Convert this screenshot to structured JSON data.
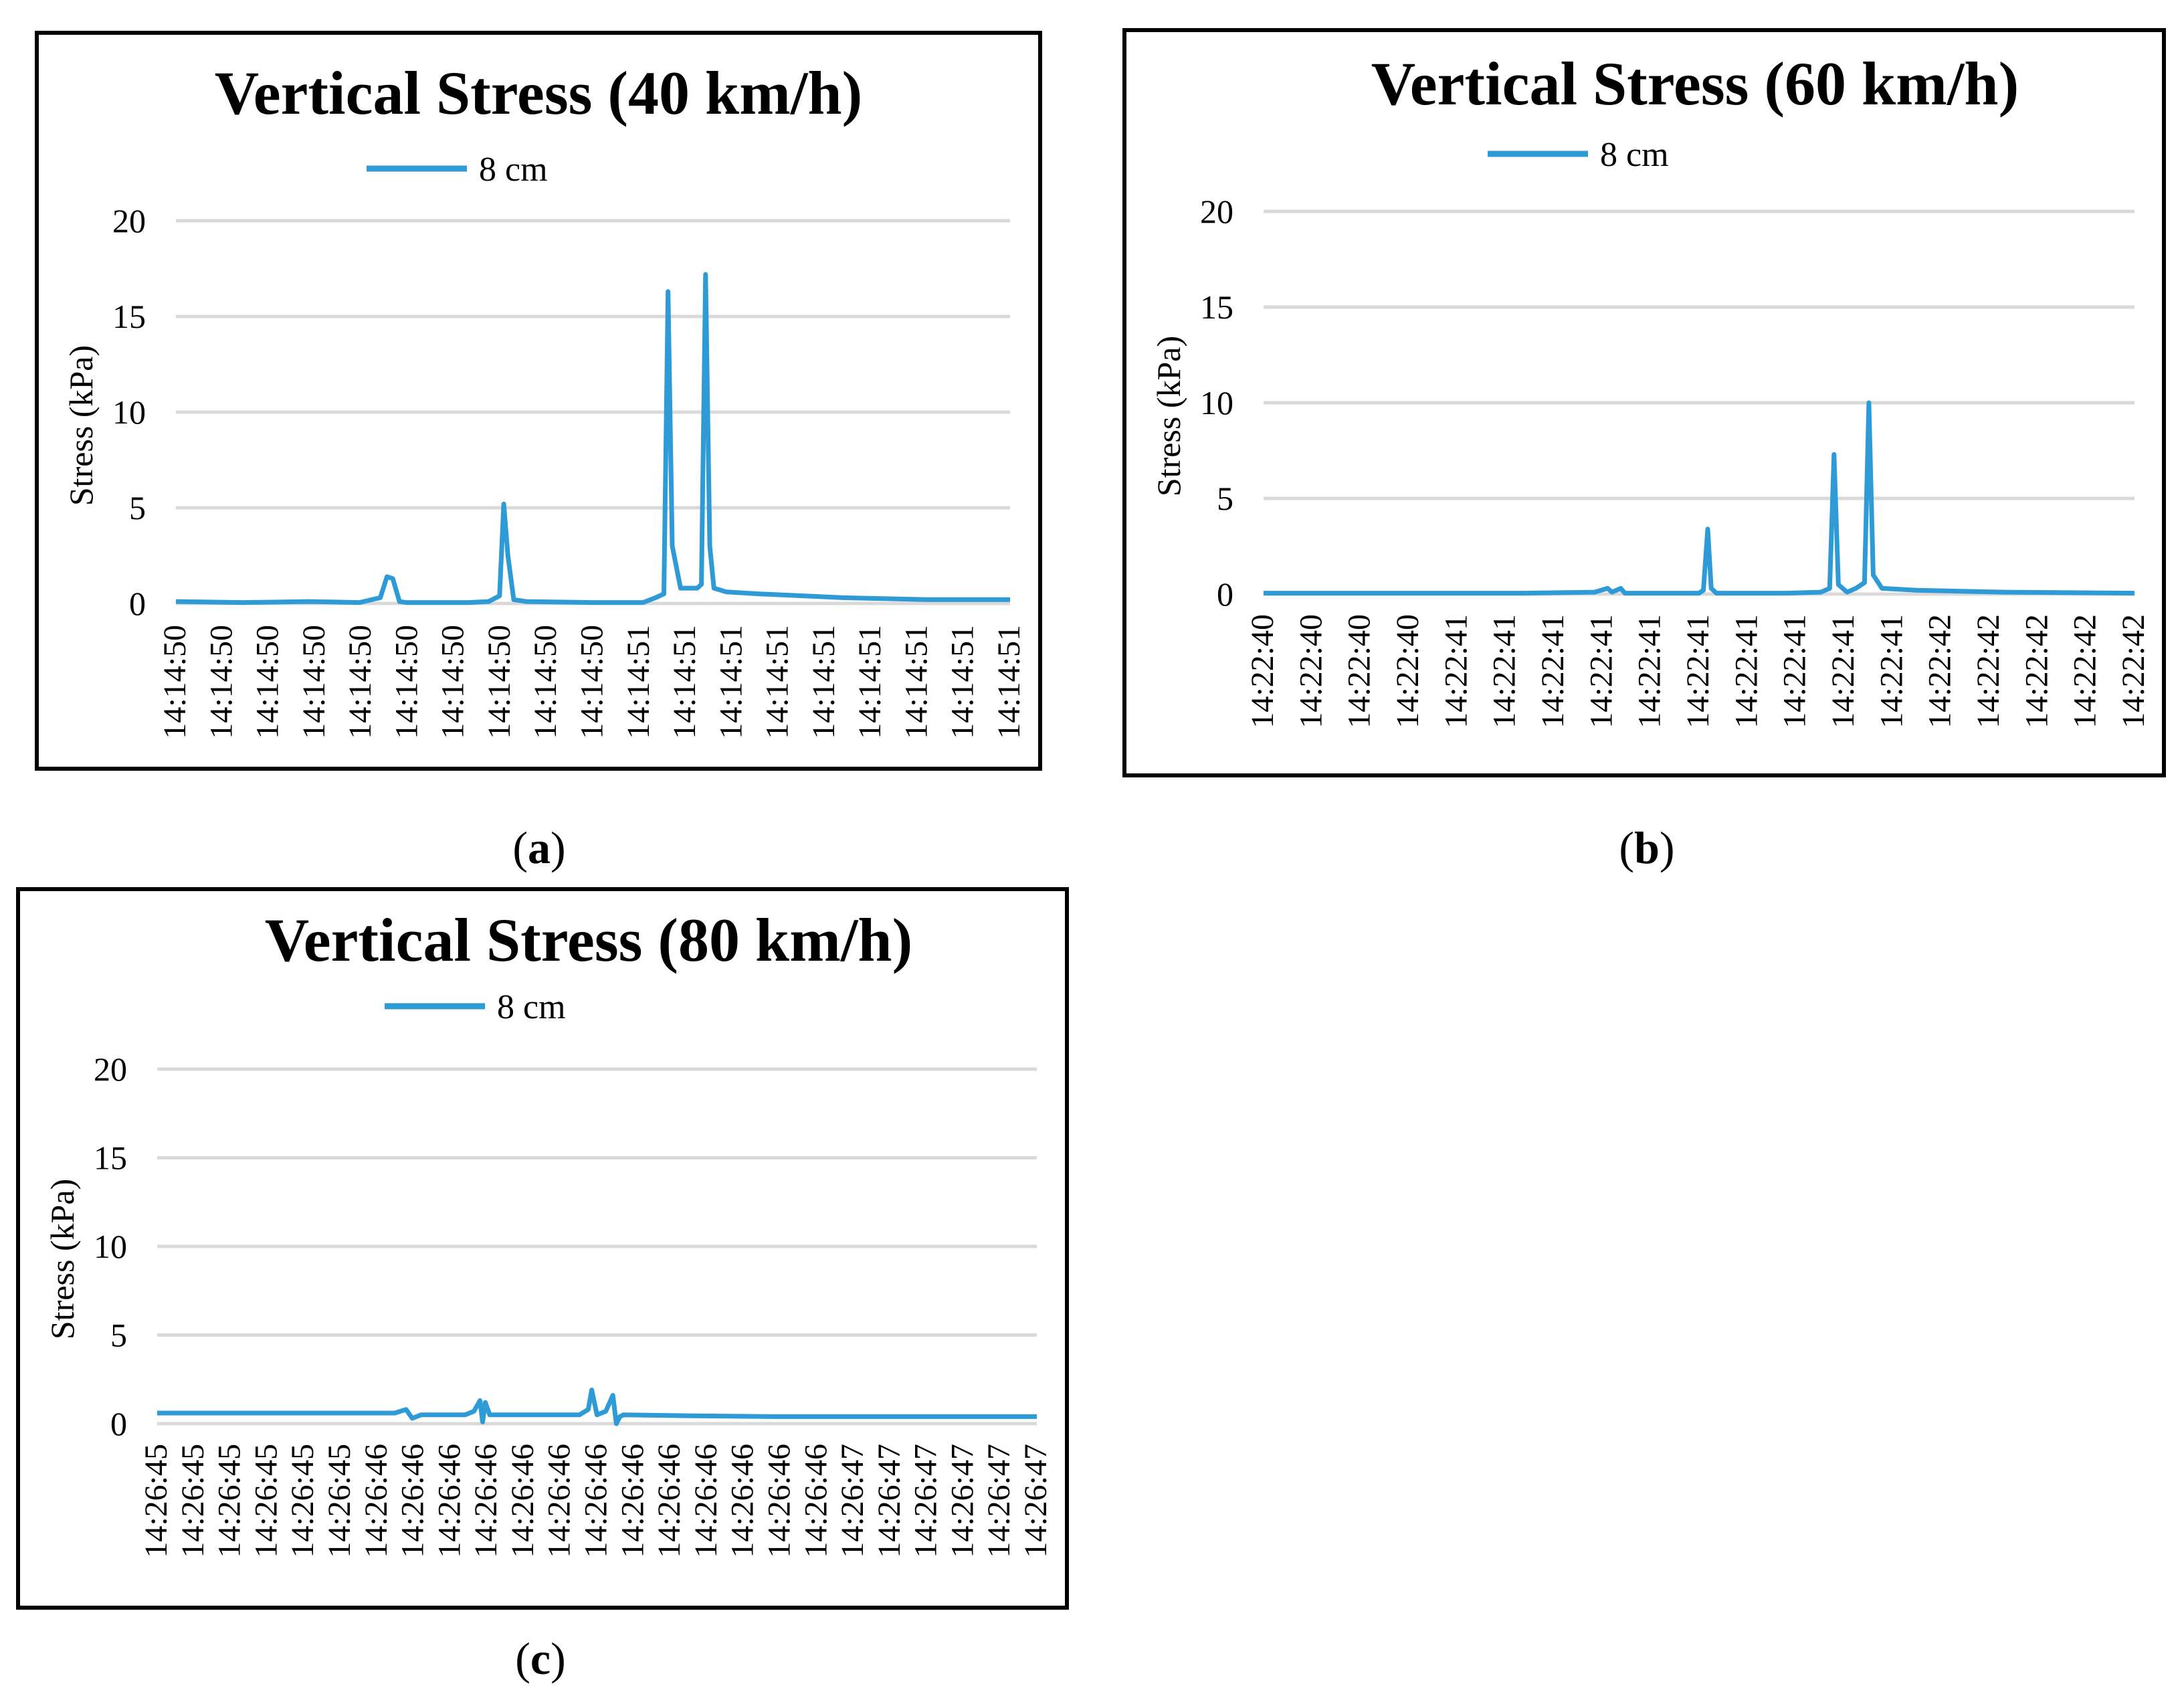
{
  "figure": {
    "panels": [
      {
        "label_open": "(",
        "label_letter": "a",
        "label_close": ")"
      },
      {
        "label_open": "(",
        "label_letter": "b",
        "label_close": ")"
      },
      {
        "label_open": "(",
        "label_letter": "c",
        "label_close": ")"
      }
    ],
    "line_color": "#2e9ad6",
    "grid_color": "#d9d9d9"
  },
  "chart_data": [
    {
      "type": "line",
      "title": "Vertical Stress (40 km/h)",
      "ylabel": "Stress (kPa)",
      "xlabel": "",
      "ylim": [
        0,
        20
      ],
      "yticks": [
        "0",
        "5",
        "10",
        "15",
        "20"
      ],
      "grid": true,
      "legend_position": "top-center",
      "categories": [
        "14:14:50",
        "14:14:50",
        "14:14:50",
        "14:14:50",
        "14:14:50",
        "14:14:50",
        "14:14:50",
        "14:14:50",
        "14:14:50",
        "14:14:50",
        "14:14:51",
        "14:14:51",
        "14:14:51",
        "14:14:51",
        "14:14:51",
        "14:14:51",
        "14:14:51",
        "14:14:51",
        "14:14:51"
      ],
      "series": [
        {
          "name": "8 cm",
          "x": [
            0,
            0.08,
            0.16,
            0.22,
            0.245,
            0.253,
            0.26,
            0.268,
            0.276,
            0.3,
            0.35,
            0.375,
            0.388,
            0.393,
            0.398,
            0.405,
            0.42,
            0.5,
            0.56,
            0.575,
            0.585,
            0.59,
            0.595,
            0.605,
            0.625,
            0.63,
            0.635,
            0.64,
            0.645,
            0.66,
            0.7,
            0.8,
            0.9,
            1.0
          ],
          "y": [
            0.1,
            0.05,
            0.1,
            0.05,
            0.3,
            1.4,
            1.3,
            0.1,
            0.05,
            0.05,
            0.05,
            0.1,
            0.4,
            5.2,
            2.5,
            0.2,
            0.1,
            0.05,
            0.05,
            0.3,
            0.5,
            16.3,
            3.0,
            0.8,
            0.8,
            1.0,
            17.2,
            3.0,
            0.8,
            0.6,
            0.5,
            0.3,
            0.2,
            0.2
          ]
        }
      ]
    },
    {
      "type": "line",
      "title": "Vertical Stress (60 km/h)",
      "ylabel": "Stress (kPa)",
      "xlabel": "",
      "ylim": [
        0,
        20
      ],
      "yticks": [
        "0",
        "5",
        "10",
        "15",
        "20"
      ],
      "grid": true,
      "legend_position": "top-center",
      "categories": [
        "14:22:40",
        "14:22:40",
        "14:22:40",
        "14:22:40",
        "14:22:41",
        "14:22:41",
        "14:22:41",
        "14:22:41",
        "14:22:41",
        "14:22:41",
        "14:22:41",
        "14:22:41",
        "14:22:41",
        "14:22:41",
        "14:22:42",
        "14:22:42",
        "14:22:42",
        "14:22:42",
        "14:22:42"
      ],
      "series": [
        {
          "name": "8 cm",
          "x": [
            0,
            0.1,
            0.2,
            0.3,
            0.38,
            0.395,
            0.4,
            0.405,
            0.41,
            0.415,
            0.42,
            0.5,
            0.505,
            0.51,
            0.514,
            0.52,
            0.53,
            0.6,
            0.64,
            0.65,
            0.655,
            0.66,
            0.67,
            0.68,
            0.69,
            0.695,
            0.7,
            0.71,
            0.75,
            0.85,
            1.0
          ],
          "y": [
            0.05,
            0.05,
            0.05,
            0.05,
            0.1,
            0.3,
            0.1,
            0.2,
            0.3,
            0.05,
            0.05,
            0.05,
            0.2,
            3.4,
            0.3,
            0.05,
            0.05,
            0.05,
            0.1,
            0.3,
            7.3,
            0.5,
            0.1,
            0.3,
            0.6,
            10.0,
            1.0,
            0.3,
            0.2,
            0.1,
            0.05
          ]
        }
      ]
    },
    {
      "type": "line",
      "title": "Vertical Stress (80 km/h)",
      "ylabel": "Stress (kPa)",
      "xlabel": "",
      "ylim": [
        0,
        20
      ],
      "yticks": [
        "0",
        "5",
        "10",
        "15",
        "20"
      ],
      "grid": true,
      "legend_position": "top-center",
      "categories": [
        "14:26:45",
        "14:26:45",
        "14:26:45",
        "14:26:45",
        "14:26:45",
        "14:26:45",
        "14:26:46",
        "14:26:46",
        "14:26:46",
        "14:26:46",
        "14:26:46",
        "14:26:46",
        "14:26:46",
        "14:26:46",
        "14:26:46",
        "14:26:46",
        "14:26:46",
        "14:26:46",
        "14:26:46",
        "14:26:47",
        "14:26:47",
        "14:26:47",
        "14:26:47",
        "14:26:47",
        "14:26:47"
      ],
      "series": [
        {
          "name": "8 cm",
          "x": [
            0,
            0.1,
            0.2,
            0.27,
            0.283,
            0.29,
            0.3,
            0.35,
            0.36,
            0.367,
            0.37,
            0.373,
            0.378,
            0.4,
            0.48,
            0.49,
            0.494,
            0.5,
            0.51,
            0.518,
            0.522,
            0.526,
            0.53,
            0.6,
            0.7,
            0.8,
            0.9,
            1.0
          ],
          "y": [
            0.6,
            0.6,
            0.6,
            0.6,
            0.8,
            0.3,
            0.5,
            0.5,
            0.7,
            1.3,
            0.1,
            1.2,
            0.5,
            0.5,
            0.5,
            0.8,
            1.9,
            0.5,
            0.7,
            1.6,
            0.0,
            0.4,
            0.5,
            0.45,
            0.4,
            0.4,
            0.4,
            0.4
          ]
        }
      ]
    }
  ]
}
